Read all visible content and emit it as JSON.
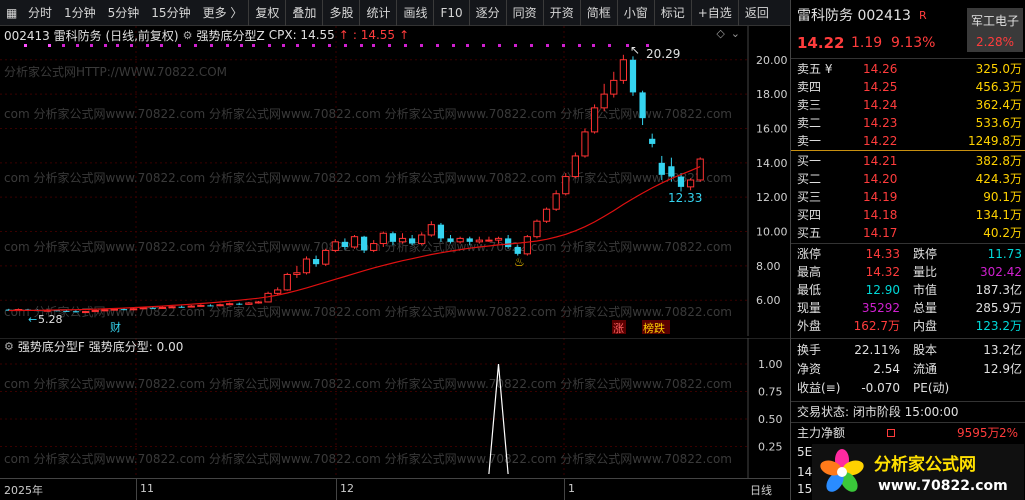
{
  "toolbar": {
    "items": [
      "分时",
      "1分钟",
      "5分钟",
      "15分钟",
      "更多 〉",
      "复权",
      "叠加",
      "多股",
      "统计",
      "画线",
      "F10",
      "逐分",
      "同资",
      "开资",
      "简框",
      "小窗",
      "标记",
      "+自选",
      "返回"
    ]
  },
  "main_header": {
    "code_name": "002413  雷科防务 (日线,前复权)",
    "indicator": "强势底分型Z",
    "cpx_label": "CPX: 14.55",
    "cpx_arrow": "↑",
    "second_label": ": 14.55",
    "second_arrow": "↑"
  },
  "sub_header": {
    "indicator": "强势底分型F",
    "value_text": "强势底分型: 0.00"
  },
  "watermarks": {
    "line1": "分析家公式网HTTP://WWW.70822.COM",
    "line2": "com  分析家公式网www.70822.com  分析家公式网www.70822.com  分析家公式网www.70822.com  分析家公式网www.70822.com",
    "repeat": "分析家公式网www.70822.com"
  },
  "chart_labels": {
    "high": "20.29",
    "low": "12.33",
    "start": "5.28",
    "cai": "财",
    "zhang": "涨",
    "bangdie": "榜跌",
    "year": "2025年",
    "m11": "11",
    "m12": "12",
    "m1": "1",
    "period": "日线"
  },
  "price_axis": [
    "20.00",
    "18.00",
    "16.00",
    "14.00",
    "12.00",
    "10.00",
    "8.00",
    "6.00"
  ],
  "sub_axis": [
    "1.00",
    "0.75",
    "0.50",
    "0.25"
  ],
  "colors": {
    "up": "#ff3232",
    "down": "#35d4f0",
    "ma": "#e01010",
    "bg": "#000000",
    "grid": "#3a0000"
  },
  "chart_data": {
    "type": "candlestick",
    "ylim": [
      4.5,
      21.5
    ],
    "candles": [
      [
        5.45,
        5.42,
        5.5,
        5.38
      ],
      [
        5.42,
        5.46,
        5.52,
        5.38
      ],
      [
        5.46,
        5.44,
        5.5,
        5.4
      ],
      [
        5.44,
        5.4,
        5.48,
        5.36
      ],
      [
        5.4,
        5.42,
        5.48,
        5.36
      ],
      [
        5.42,
        5.38,
        5.46,
        5.34
      ],
      [
        5.38,
        5.36,
        5.42,
        5.32
      ],
      [
        5.36,
        5.3,
        5.4,
        5.28
      ],
      [
        5.3,
        5.34,
        5.38,
        5.28
      ],
      [
        5.34,
        5.4,
        5.44,
        5.32
      ],
      [
        5.4,
        5.44,
        5.48,
        5.38
      ],
      [
        5.44,
        5.48,
        5.54,
        5.42
      ],
      [
        5.48,
        5.46,
        5.52,
        5.42
      ],
      [
        5.46,
        5.5,
        5.56,
        5.44
      ],
      [
        5.5,
        5.56,
        5.6,
        5.48
      ],
      [
        5.56,
        5.52,
        5.62,
        5.48
      ],
      [
        5.52,
        5.58,
        5.64,
        5.5
      ],
      [
        5.58,
        5.62,
        5.68,
        5.54
      ],
      [
        5.62,
        5.6,
        5.68,
        5.56
      ],
      [
        5.6,
        5.66,
        5.72,
        5.58
      ],
      [
        5.66,
        5.7,
        5.76,
        5.62
      ],
      [
        5.7,
        5.68,
        5.76,
        5.64
      ],
      [
        5.68,
        5.74,
        5.8,
        5.64
      ],
      [
        5.74,
        5.8,
        5.86,
        5.7
      ],
      [
        5.8,
        5.76,
        5.86,
        5.72
      ],
      [
        5.76,
        5.84,
        5.9,
        5.74
      ],
      [
        5.84,
        5.9,
        5.96,
        5.8
      ],
      [
        5.9,
        6.4,
        6.5,
        5.88
      ],
      [
        6.4,
        6.6,
        6.75,
        6.3
      ],
      [
        6.6,
        7.5,
        7.6,
        6.55
      ],
      [
        7.5,
        7.6,
        8.0,
        7.3
      ],
      [
        7.6,
        8.4,
        8.55,
        7.5
      ],
      [
        8.4,
        8.1,
        8.6,
        7.95
      ],
      [
        8.1,
        8.9,
        9.0,
        8.0
      ],
      [
        8.9,
        9.4,
        9.55,
        8.8
      ],
      [
        9.4,
        9.1,
        9.6,
        8.95
      ],
      [
        9.1,
        9.7,
        9.8,
        9.0
      ],
      [
        9.7,
        8.9,
        9.75,
        8.75
      ],
      [
        8.9,
        9.3,
        9.5,
        8.8
      ],
      [
        9.3,
        9.9,
        10.0,
        9.1
      ],
      [
        9.9,
        9.4,
        10.0,
        9.2
      ],
      [
        9.4,
        9.6,
        9.9,
        9.3
      ],
      [
        9.6,
        9.3,
        9.8,
        9.2
      ],
      [
        9.3,
        9.8,
        9.95,
        9.2
      ],
      [
        9.8,
        10.4,
        10.6,
        9.7
      ],
      [
        10.4,
        9.6,
        10.5,
        9.4
      ],
      [
        9.6,
        9.4,
        9.8,
        9.3
      ],
      [
        9.4,
        9.6,
        9.7,
        9.3
      ],
      [
        9.6,
        9.4,
        9.7,
        9.2
      ],
      [
        9.4,
        9.5,
        9.7,
        9.3
      ],
      [
        9.5,
        9.5,
        9.7,
        9.4
      ],
      [
        9.5,
        9.6,
        9.7,
        9.3
      ],
      [
        9.6,
        9.1,
        9.8,
        9.0
      ],
      [
        9.1,
        8.7,
        9.2,
        8.6
      ],
      [
        8.7,
        9.7,
        9.8,
        8.6
      ],
      [
        9.7,
        10.6,
        10.7,
        9.6
      ],
      [
        10.6,
        11.3,
        11.4,
        10.5
      ],
      [
        11.3,
        12.2,
        12.4,
        11.2
      ],
      [
        12.2,
        13.2,
        13.4,
        12.1
      ],
      [
        13.2,
        14.4,
        14.6,
        13.1
      ],
      [
        14.4,
        15.8,
        16.0,
        14.3
      ],
      [
        15.8,
        17.2,
        17.4,
        15.7
      ],
      [
        17.2,
        18.0,
        18.6,
        17.0
      ],
      [
        18.0,
        18.8,
        19.3,
        17.8
      ],
      [
        18.8,
        20.0,
        20.29,
        18.6
      ],
      [
        20.0,
        18.1,
        20.2,
        17.9
      ],
      [
        18.1,
        16.6,
        18.2,
        16.2
      ],
      [
        15.4,
        15.1,
        15.7,
        14.9
      ],
      [
        14.0,
        13.3,
        14.4,
        13.0
      ],
      [
        13.8,
        13.2,
        14.3,
        12.9
      ],
      [
        13.2,
        12.6,
        13.4,
        12.33
      ],
      [
        12.6,
        13.0,
        13.1,
        12.4
      ],
      [
        13.0,
        14.22,
        14.32,
        12.9
      ]
    ],
    "ma": [
      5.4,
      5.4,
      5.41,
      5.41,
      5.42,
      5.43,
      5.44,
      5.45,
      5.46,
      5.48,
      5.5,
      5.52,
      5.54,
      5.57,
      5.6,
      5.63,
      5.66,
      5.7,
      5.73,
      5.77,
      5.81,
      5.85,
      5.9,
      5.95,
      6.0,
      6.06,
      6.12,
      6.2,
      6.3,
      6.42,
      6.56,
      6.72,
      6.88,
      7.05,
      7.22,
      7.38,
      7.55,
      7.72,
      7.88,
      8.03,
      8.17,
      8.3,
      8.42,
      8.54,
      8.66,
      8.76,
      8.86,
      8.95,
      9.03,
      9.1,
      9.16,
      9.22,
      9.27,
      9.32,
      9.38,
      9.45,
      9.55,
      9.68,
      9.84,
      10.04,
      10.28,
      10.56,
      10.88,
      11.22,
      11.58,
      11.92,
      12.24,
      12.54,
      12.82,
      13.08,
      13.32,
      13.54,
      13.78
    ],
    "signal": {
      "index": 51,
      "value": 1.0
    },
    "sub_ylim": [
      0,
      1.2
    ]
  },
  "quote": {
    "name_code": "雷科防务 002413",
    "r_badge": "R",
    "sector": "军工电子",
    "sector_pct": "2.28%",
    "price": "14.22",
    "change": "1.19",
    "pct": "9.13%",
    "asks": [
      [
        "卖五",
        "¥",
        "14.26",
        "325.0万"
      ],
      [
        "卖四",
        "",
        "14.25",
        "456.3万"
      ],
      [
        "卖三",
        "",
        "14.24",
        "362.4万"
      ],
      [
        "卖二",
        "",
        "14.23",
        "533.6万"
      ],
      [
        "卖一",
        "",
        "14.22",
        "1249.8万"
      ]
    ],
    "bids": [
      [
        "买一",
        "14.21",
        "382.8万"
      ],
      [
        "买二",
        "14.20",
        "424.3万"
      ],
      [
        "买三",
        "14.19",
        "90.1万"
      ],
      [
        "买四",
        "14.18",
        "134.1万"
      ],
      [
        "买五",
        "14.17",
        "40.2万"
      ]
    ],
    "stats1": [
      [
        "涨停",
        "14.33",
        "跌停",
        "11.73"
      ],
      [
        "最高",
        "14.32",
        "量比",
        "302.42"
      ],
      [
        "最低",
        "12.90",
        "市值",
        "187.3亿"
      ],
      [
        "现量",
        "35292",
        "总量",
        "285.9万"
      ],
      [
        "外盘",
        "162.7万",
        "内盘",
        "123.2万"
      ]
    ],
    "stats2": [
      [
        "换手",
        "22.11%",
        "股本",
        "13.2亿"
      ],
      [
        "净资",
        "2.54",
        "流通",
        "12.9亿"
      ],
      [
        "收益(≡)",
        "-0.070",
        "PE(动)",
        ""
      ]
    ],
    "status": "交易状态: 闭市阶段 15:00:00",
    "flow_label": "主力净额",
    "flow_value": "9595万",
    "flow_pct": "2%",
    "row_5e": "5E",
    "row_14": "14",
    "row_15": "15",
    "logo_text": "分析家公式网",
    "logo_url": "www.70822.com"
  }
}
